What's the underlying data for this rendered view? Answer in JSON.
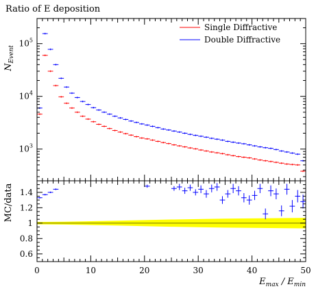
{
  "chart_data": [
    {
      "panel": "main",
      "type": "scatter",
      "title": "Ratio of E deposition",
      "ylabel": "N_Event",
      "xlabel": "",
      "xlim": [
        0,
        50
      ],
      "ylim": [
        250,
        300000
      ],
      "yscale": "log",
      "yticks": [
        {
          "value": 1000,
          "base": "10",
          "exp": "3"
        },
        {
          "value": 10000,
          "base": "10",
          "exp": "4"
        },
        {
          "value": 100000,
          "base": "10",
          "exp": "5"
        }
      ],
      "grid": false,
      "legend_position": "top-right",
      "series": [
        {
          "name": "Single Diffractive",
          "color": "#ff0000",
          "x": [
            0.5,
            1.5,
            2.5,
            3.5,
            4.5,
            5.5,
            6.5,
            7.5,
            8.5,
            9.5,
            10.5,
            11.5,
            12.5,
            13.5,
            14.5,
            15.5,
            16.5,
            17.5,
            18.5,
            19.5,
            20.5,
            21.5,
            22.5,
            23.5,
            24.5,
            25.5,
            26.5,
            27.5,
            28.5,
            29.5,
            30.5,
            31.5,
            32.5,
            33.5,
            34.5,
            35.5,
            36.5,
            37.5,
            38.5,
            39.5,
            40.5,
            41.5,
            42.5,
            43.5,
            44.5,
            45.5,
            46.5,
            47.5,
            48.5,
            49.5
          ],
          "y": [
            4600,
            60000,
            30000,
            16000,
            9800,
            7400,
            6000,
            5000,
            4200,
            3700,
            3300,
            2950,
            2700,
            2450,
            2250,
            2100,
            1960,
            1840,
            1720,
            1620,
            1560,
            1480,
            1400,
            1330,
            1270,
            1200,
            1150,
            1100,
            1050,
            1010,
            960,
            920,
            880,
            850,
            820,
            780,
            750,
            720,
            700,
            680,
            650,
            620,
            600,
            580,
            560,
            540,
            520,
            510,
            500,
            380
          ]
        },
        {
          "name": "Double Diffractive",
          "color": "#0000ff",
          "x": [
            0.5,
            1.5,
            2.5,
            3.5,
            4.5,
            5.5,
            6.5,
            7.5,
            8.5,
            9.5,
            10.5,
            11.5,
            12.5,
            13.5,
            14.5,
            15.5,
            16.5,
            17.5,
            18.5,
            19.5,
            20.5,
            21.5,
            22.5,
            23.5,
            24.5,
            25.5,
            26.5,
            27.5,
            28.5,
            29.5,
            30.5,
            31.5,
            32.5,
            33.5,
            34.5,
            35.5,
            36.5,
            37.5,
            38.5,
            39.5,
            40.5,
            41.5,
            42.5,
            43.5,
            44.5,
            45.5,
            46.5,
            47.5,
            48.5,
            49.5
          ],
          "y": [
            6000,
            155000,
            78000,
            40000,
            22000,
            15000,
            11500,
            9500,
            8000,
            7000,
            6100,
            5500,
            5000,
            4600,
            4200,
            3900,
            3650,
            3400,
            3200,
            3000,
            2850,
            2700,
            2550,
            2400,
            2300,
            2200,
            2100,
            2000,
            1900,
            1820,
            1750,
            1680,
            1600,
            1540,
            1480,
            1400,
            1350,
            1300,
            1260,
            1200,
            1150,
            1100,
            1060,
            1030,
            980,
            920,
            880,
            840,
            800,
            600
          ]
        }
      ]
    },
    {
      "panel": "ratio",
      "type": "scatter",
      "title": "",
      "ylabel": "MC/data",
      "xlabel": "E_max / E_min",
      "xlim": [
        0,
        50
      ],
      "ylim": [
        0.5,
        1.55
      ],
      "xticks": [
        0,
        10,
        20,
        30,
        40,
        50
      ],
      "yticks": [
        "0.6",
        "0.8",
        "1",
        "1.2",
        "1.4"
      ],
      "grid": false,
      "band": {
        "color": "#ffff00",
        "x": [
          0,
          5,
          10,
          15,
          20,
          25,
          30,
          35,
          40,
          45,
          50
        ],
        "lower": [
          0.985,
          0.982,
          0.975,
          0.968,
          0.96,
          0.953,
          0.947,
          0.942,
          0.938,
          0.935,
          0.932
        ],
        "upper": [
          1.015,
          1.018,
          1.025,
          1.032,
          1.04,
          1.047,
          1.053,
          1.058,
          1.062,
          1.065,
          1.068
        ]
      },
      "reference_line": {
        "y": 1,
        "color": "#808000"
      },
      "series": [
        {
          "name": "Double Diffractive",
          "color": "#0000ff",
          "x": [
            0.5,
            1.5,
            2.5,
            3.5,
            20.5,
            25.5,
            26.5,
            27.5,
            28.5,
            29.5,
            30.5,
            31.5,
            32.5,
            33.5,
            34.5,
            35.5,
            36.5,
            37.5,
            38.5,
            39.5,
            40.5,
            41.5,
            42.5,
            43.5,
            44.5,
            45.5,
            46.5,
            47.5,
            48.5,
            49.5
          ],
          "y": [
            1.33,
            1.37,
            1.4,
            1.44,
            1.48,
            1.45,
            1.47,
            1.42,
            1.46,
            1.4,
            1.44,
            1.38,
            1.45,
            1.47,
            1.3,
            1.38,
            1.45,
            1.42,
            1.33,
            1.3,
            1.36,
            1.45,
            1.12,
            1.42,
            1.38,
            1.16,
            1.44,
            1.22,
            1.35,
            1.28
          ],
          "yerr": [
            0.01,
            0.01,
            0.01,
            0.01,
            0.02,
            0.03,
            0.04,
            0.04,
            0.04,
            0.04,
            0.05,
            0.05,
            0.05,
            0.05,
            0.05,
            0.05,
            0.06,
            0.06,
            0.06,
            0.06,
            0.06,
            0.06,
            0.07,
            0.07,
            0.07,
            0.07,
            0.07,
            0.08,
            0.08,
            0.09
          ]
        }
      ]
    }
  ]
}
